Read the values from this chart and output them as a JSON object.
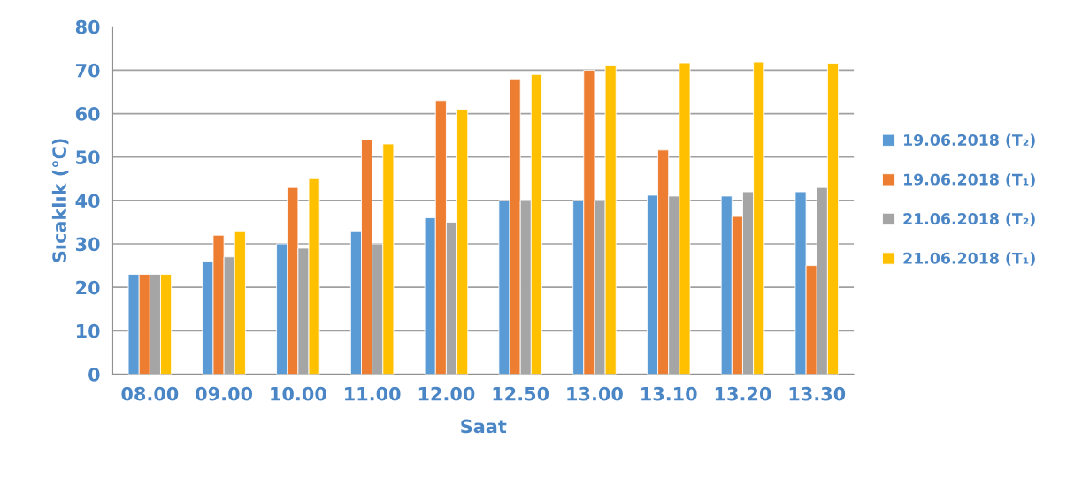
{
  "chart_data": {
    "type": "bar",
    "xlabel": "Saat",
    "ylabel": "Sıcaklık (°C)",
    "categories": [
      "08.00",
      "09.00",
      "10.00",
      "11.00",
      "12.00",
      "12.50",
      "13.00",
      "13.10",
      "13.20",
      "13.30"
    ],
    "series": [
      {
        "name": "19.06.2018 (T₂)",
        "color": "#5b9bd5",
        "values": [
          23,
          26,
          30,
          33,
          36,
          40,
          40,
          41.2,
          41,
          42
        ]
      },
      {
        "name": "19.06.2018 (T₁)",
        "color": "#ed7d31",
        "values": [
          23,
          32,
          43,
          54,
          63,
          68,
          70,
          51.6,
          36.3,
          25
        ]
      },
      {
        "name": "21.06.2018 (T₂)",
        "color": "#a5a5a5",
        "values": [
          23,
          27,
          29,
          30,
          35,
          40,
          40,
          41,
          42,
          43
        ]
      },
      {
        "name": "21.06.2018 (T₁)",
        "color": "#ffc000",
        "values": [
          23,
          33,
          45,
          53,
          61,
          69,
          71,
          71.7,
          71.9,
          71.6
        ]
      }
    ],
    "ylim": [
      0,
      80
    ],
    "yticks": [
      0,
      10,
      20,
      30,
      40,
      50,
      60,
      70,
      80
    ],
    "grid": "y",
    "legend": "right"
  }
}
